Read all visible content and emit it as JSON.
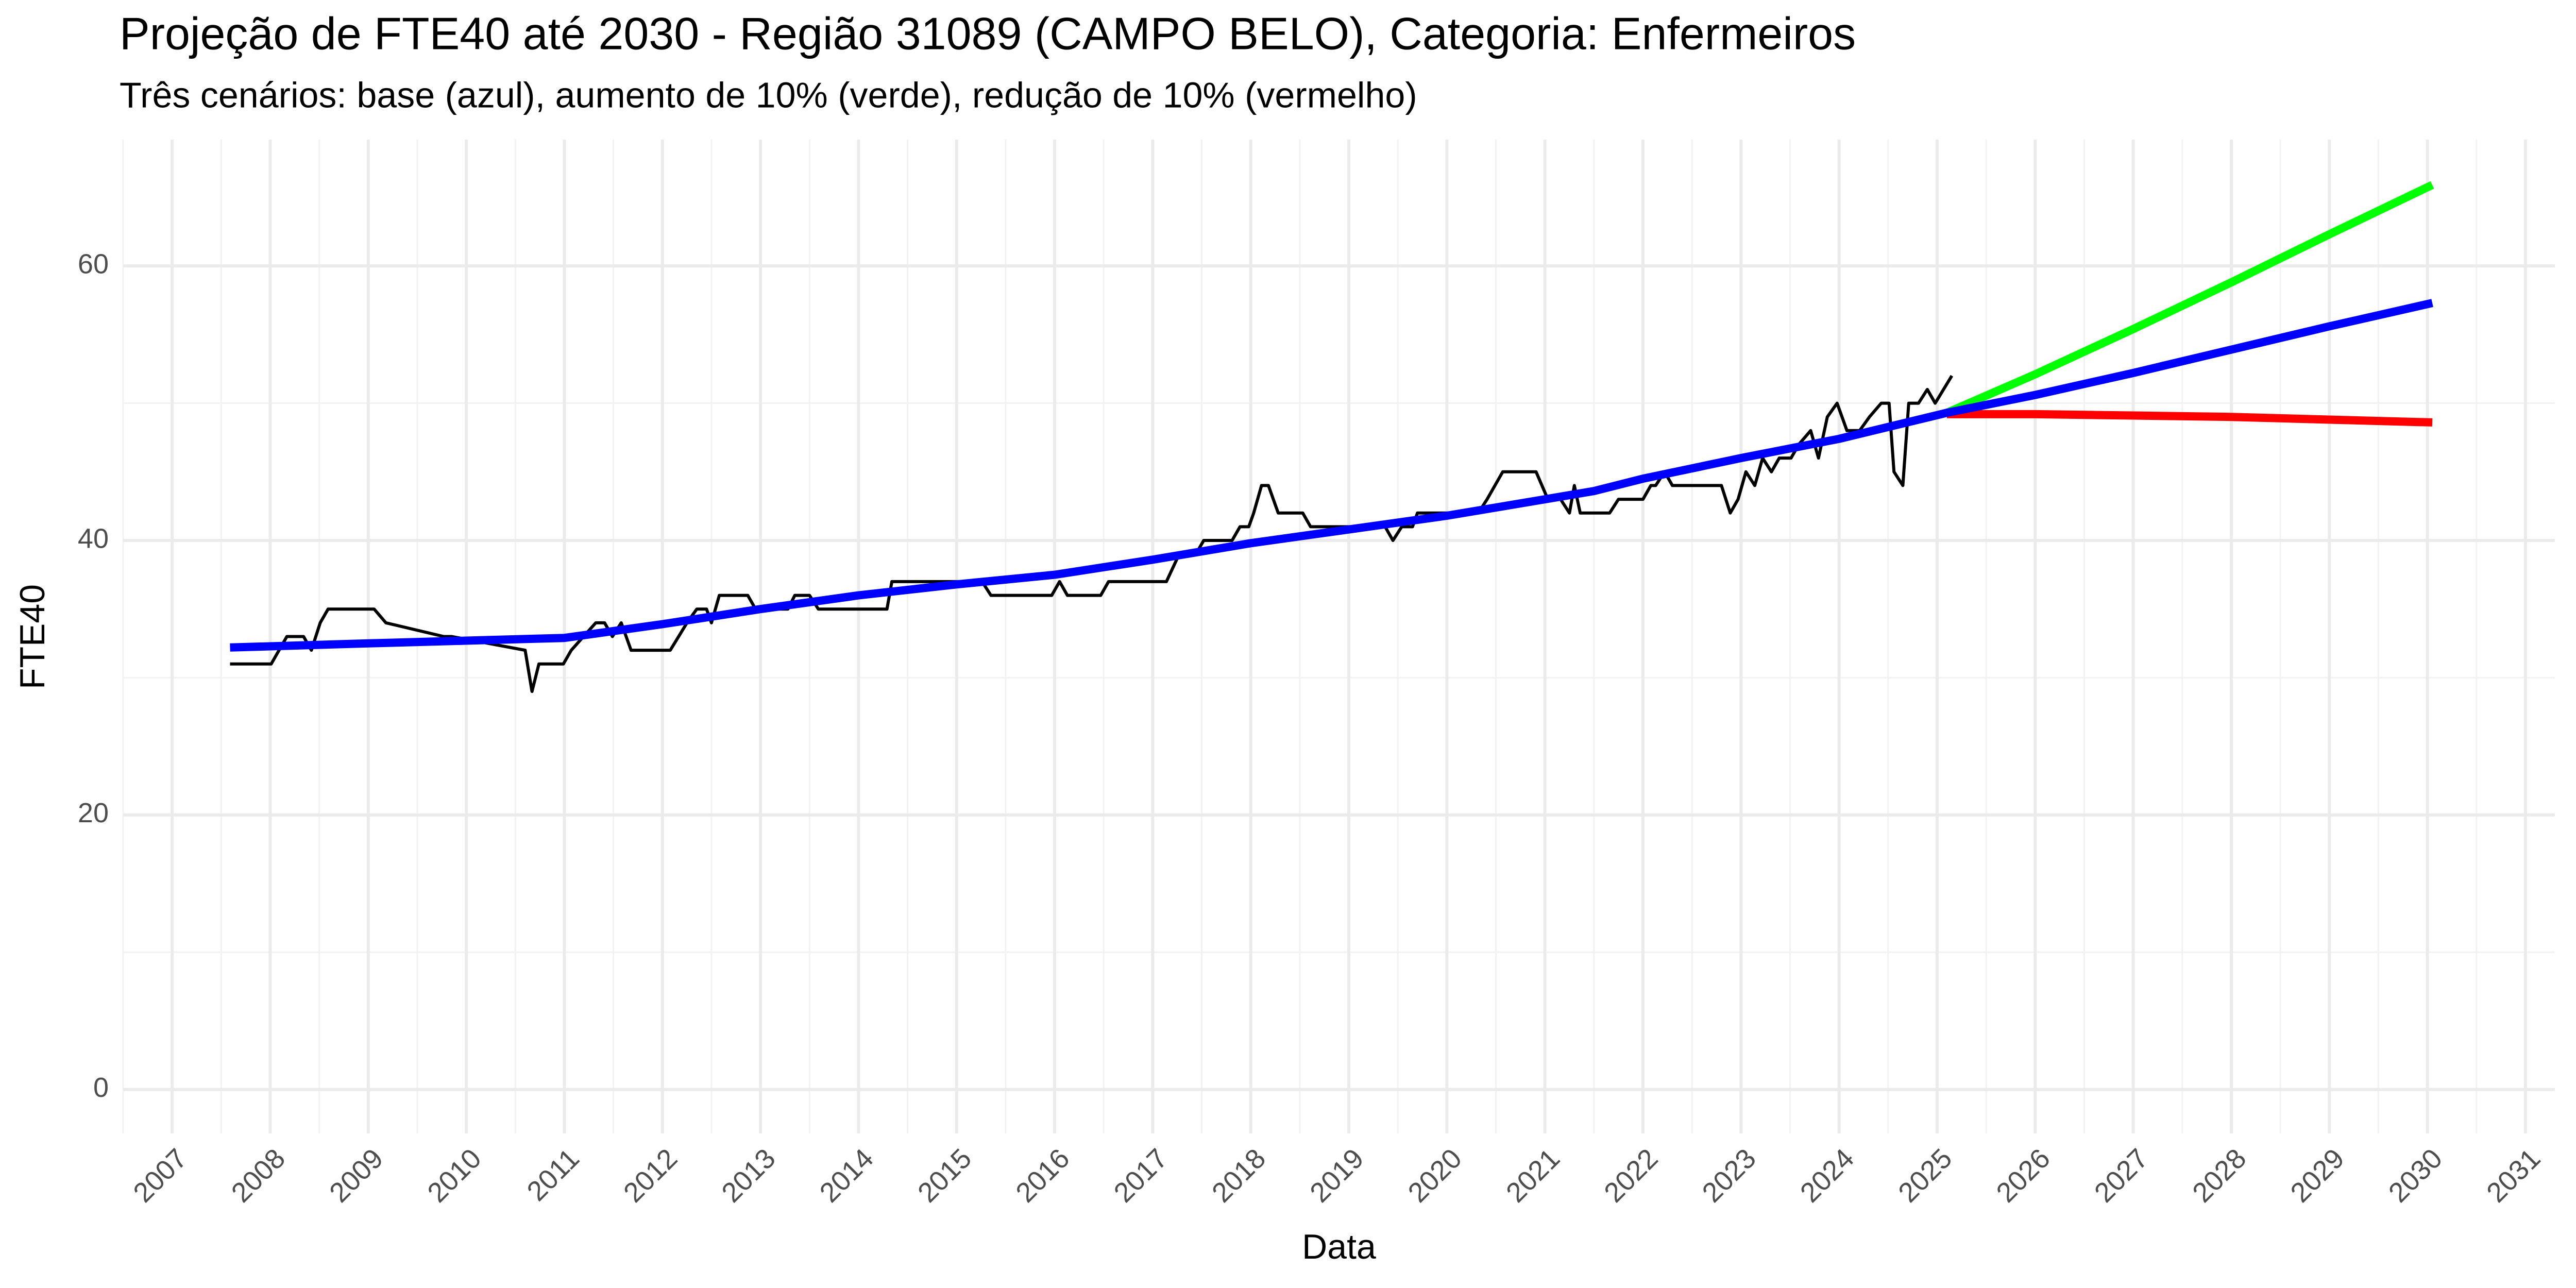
{
  "chart_data": {
    "type": "line",
    "title": "Projeção de FTE40 até 2030 - Região 31089 (CAMPO BELO), Categoria: Enfermeiros",
    "subtitle": "Três cenários: base (azul), aumento de 10% (verde), redução de 10% (vermelho)",
    "x_label": "Data",
    "y_label": "FTE40",
    "xlim": [
      2006.5,
      2031.3
    ],
    "xticks": [
      2007,
      2008,
      2009,
      2010,
      2011,
      2012,
      2013,
      2014,
      2015,
      2016,
      2017,
      2018,
      2019,
      2020,
      2021,
      2022,
      2023,
      2024,
      2025,
      2026,
      2027,
      2028,
      2029,
      2030,
      2031
    ],
    "ylim": [
      -3.2,
      69.2
    ],
    "yticks": [
      0,
      20,
      40,
      60
    ],
    "grid": true,
    "series": [
      {
        "color": "#000000",
        "x": [
          2007.59,
          2008.01,
          2008.09,
          2008.17,
          2008.34,
          2008.42,
          2008.51,
          2008.59,
          2008.93,
          2009.06,
          2009.18,
          2009.77,
          2009.85,
          2010.6,
          2010.67,
          2010.74,
          2010.99,
          2011.07,
          2011.32,
          2011.41,
          2011.49,
          2011.58,
          2011.68,
          2012.08,
          2012.25,
          2012.35,
          2012.45,
          2012.5,
          2012.58,
          2012.87,
          2012.95,
          2013.28,
          2013.35,
          2013.5,
          2013.59,
          2014.29,
          2014.34,
          2015.26,
          2015.35,
          2015.97,
          2016.05,
          2016.13,
          2016.47,
          2016.55,
          2017.14,
          2017.27,
          2017.44,
          2017.52,
          2017.81,
          2017.89,
          2017.98,
          2018.03,
          2018.11,
          2018.18,
          2018.28,
          2018.53,
          2018.61,
          2019.37,
          2019.45,
          2019.54,
          2019.65,
          2019.7,
          2020.32,
          2020.41,
          2020.57,
          2020.91,
          2021.03,
          2021.16,
          2021.25,
          2021.3,
          2021.36,
          2021.66,
          2021.75,
          2022.0,
          2022.08,
          2022.13,
          2022.22,
          2022.3,
          2022.8,
          2022.89,
          2022.97,
          2023.05,
          2023.14,
          2023.22,
          2023.31,
          2023.39,
          2023.51,
          2023.59,
          2023.71,
          2023.79,
          2023.88,
          2023.98,
          2024.08,
          2024.21,
          2024.31,
          2024.43,
          2024.51,
          2024.56,
          2024.65,
          2024.71,
          2024.81,
          2024.9,
          2024.98,
          2025.15
        ],
        "values": [
          31,
          31,
          32,
          33,
          33,
          32,
          34,
          35,
          35,
          35,
          34,
          33,
          33,
          32,
          29,
          31,
          31,
          32,
          34,
          34,
          33,
          34,
          32,
          32,
          34,
          35,
          35,
          34,
          36,
          36,
          35,
          35,
          36,
          36,
          35,
          35,
          37,
          37,
          36,
          36,
          37,
          36,
          36,
          37,
          37,
          39,
          39,
          40,
          40,
          41,
          41,
          42,
          44,
          44,
          42,
          42,
          41,
          41,
          40,
          41,
          41,
          42,
          42,
          43,
          45,
          45,
          43,
          43,
          42,
          44,
          42,
          42,
          43,
          43,
          44,
          44,
          45,
          44,
          44,
          42,
          43,
          45,
          44,
          46,
          45,
          46,
          46,
          47,
          48,
          46,
          49,
          50,
          48,
          48,
          49,
          50,
          50,
          45,
          44,
          50,
          50,
          51,
          50,
          52
        ]
      },
      {
        "color": "#00ff00",
        "x": [
          2025.1,
          2026,
          2027,
          2028,
          2029,
          2030.05
        ],
        "values": [
          49.3,
          52.1,
          55.4,
          58.8,
          62.3,
          65.9
        ]
      },
      {
        "color": "#ff0000",
        "x": [
          2025.1,
          2026,
          2027,
          2028,
          2029,
          2030.05
        ],
        "values": [
          49.2,
          49.2,
          49.1,
          49.0,
          48.8,
          48.6
        ]
      },
      {
        "color": "#0000ff",
        "x": [
          2007.59,
          2009,
          2010,
          2011,
          2012,
          2013,
          2014,
          2015,
          2016,
          2017,
          2018,
          2019,
          2020,
          2021,
          2021.5,
          2022,
          2023,
          2024,
          2025.1,
          2026,
          2027,
          2028,
          2029,
          2030.05
        ],
        "values": [
          32.2,
          32.5,
          32.7,
          32.9,
          33.9,
          35.0,
          36.0,
          36.8,
          37.5,
          38.6,
          39.8,
          40.8,
          41.8,
          43.0,
          43.6,
          44.5,
          46.0,
          47.4,
          49.3,
          50.6,
          52.2,
          53.9,
          55.6,
          57.3
        ]
      }
    ]
  }
}
